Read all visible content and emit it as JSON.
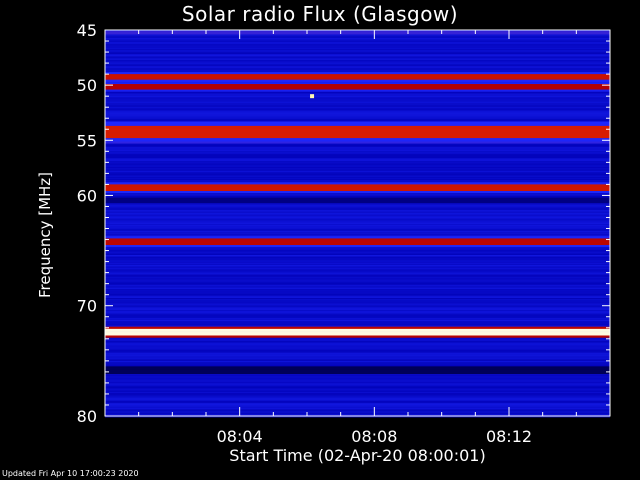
{
  "chart_data": {
    "type": "heatmap",
    "title": "Solar radio Flux (Glasgow)",
    "xlabel": "Start Time (02-Apr-20 08:00:01)",
    "ylabel": "Frequency [MHz]",
    "footer": "Updated Fri Apr 10 17:00:23 2020",
    "x_range_minutes": [
      0,
      15
    ],
    "x_ticks": [
      {
        "minute": 4,
        "label": "08:04"
      },
      {
        "minute": 8,
        "label": "08:08"
      },
      {
        "minute": 12,
        "label": "08:12"
      }
    ],
    "y_range_mhz": [
      80,
      45
    ],
    "y_ticks": [
      {
        "mhz": 45,
        "label": "45"
      },
      {
        "mhz": 50,
        "label": "50"
      },
      {
        "mhz": 55,
        "label": "55"
      },
      {
        "mhz": 60,
        "label": "60"
      },
      {
        "mhz": 70,
        "label": "70"
      },
      {
        "mhz": 80,
        "label": "80"
      }
    ],
    "colormap": [
      "#000000",
      "#0000b4",
      "#1e28ff",
      "#b40000",
      "#ff3c00",
      "#ffe600",
      "#ffffff"
    ],
    "background_level": 0.22,
    "bands": [
      {
        "mhz": 45.2,
        "level": 0.36,
        "width_mhz": 0.15
      },
      {
        "mhz": 49.3,
        "level": 0.55,
        "width_mhz": 0.25
      },
      {
        "mhz": 50.2,
        "level": 0.5,
        "width_mhz": 0.25
      },
      {
        "mhz": 54.3,
        "level": 0.58,
        "width_mhz": 0.55
      },
      {
        "mhz": 59.3,
        "level": 0.56,
        "width_mhz": 0.3
      },
      {
        "mhz": 60.5,
        "level": 0.12,
        "width_mhz": 0.25
      },
      {
        "mhz": 64.2,
        "level": 0.52,
        "width_mhz": 0.3
      },
      {
        "mhz": 72.4,
        "level": 0.98,
        "width_mhz": 0.3
      },
      {
        "mhz": 75.8,
        "level": 0.08,
        "width_mhz": 0.35
      }
    ],
    "spikes": [
      {
        "minute": 6.15,
        "mhz": 51.0,
        "level": 0.95
      }
    ]
  }
}
